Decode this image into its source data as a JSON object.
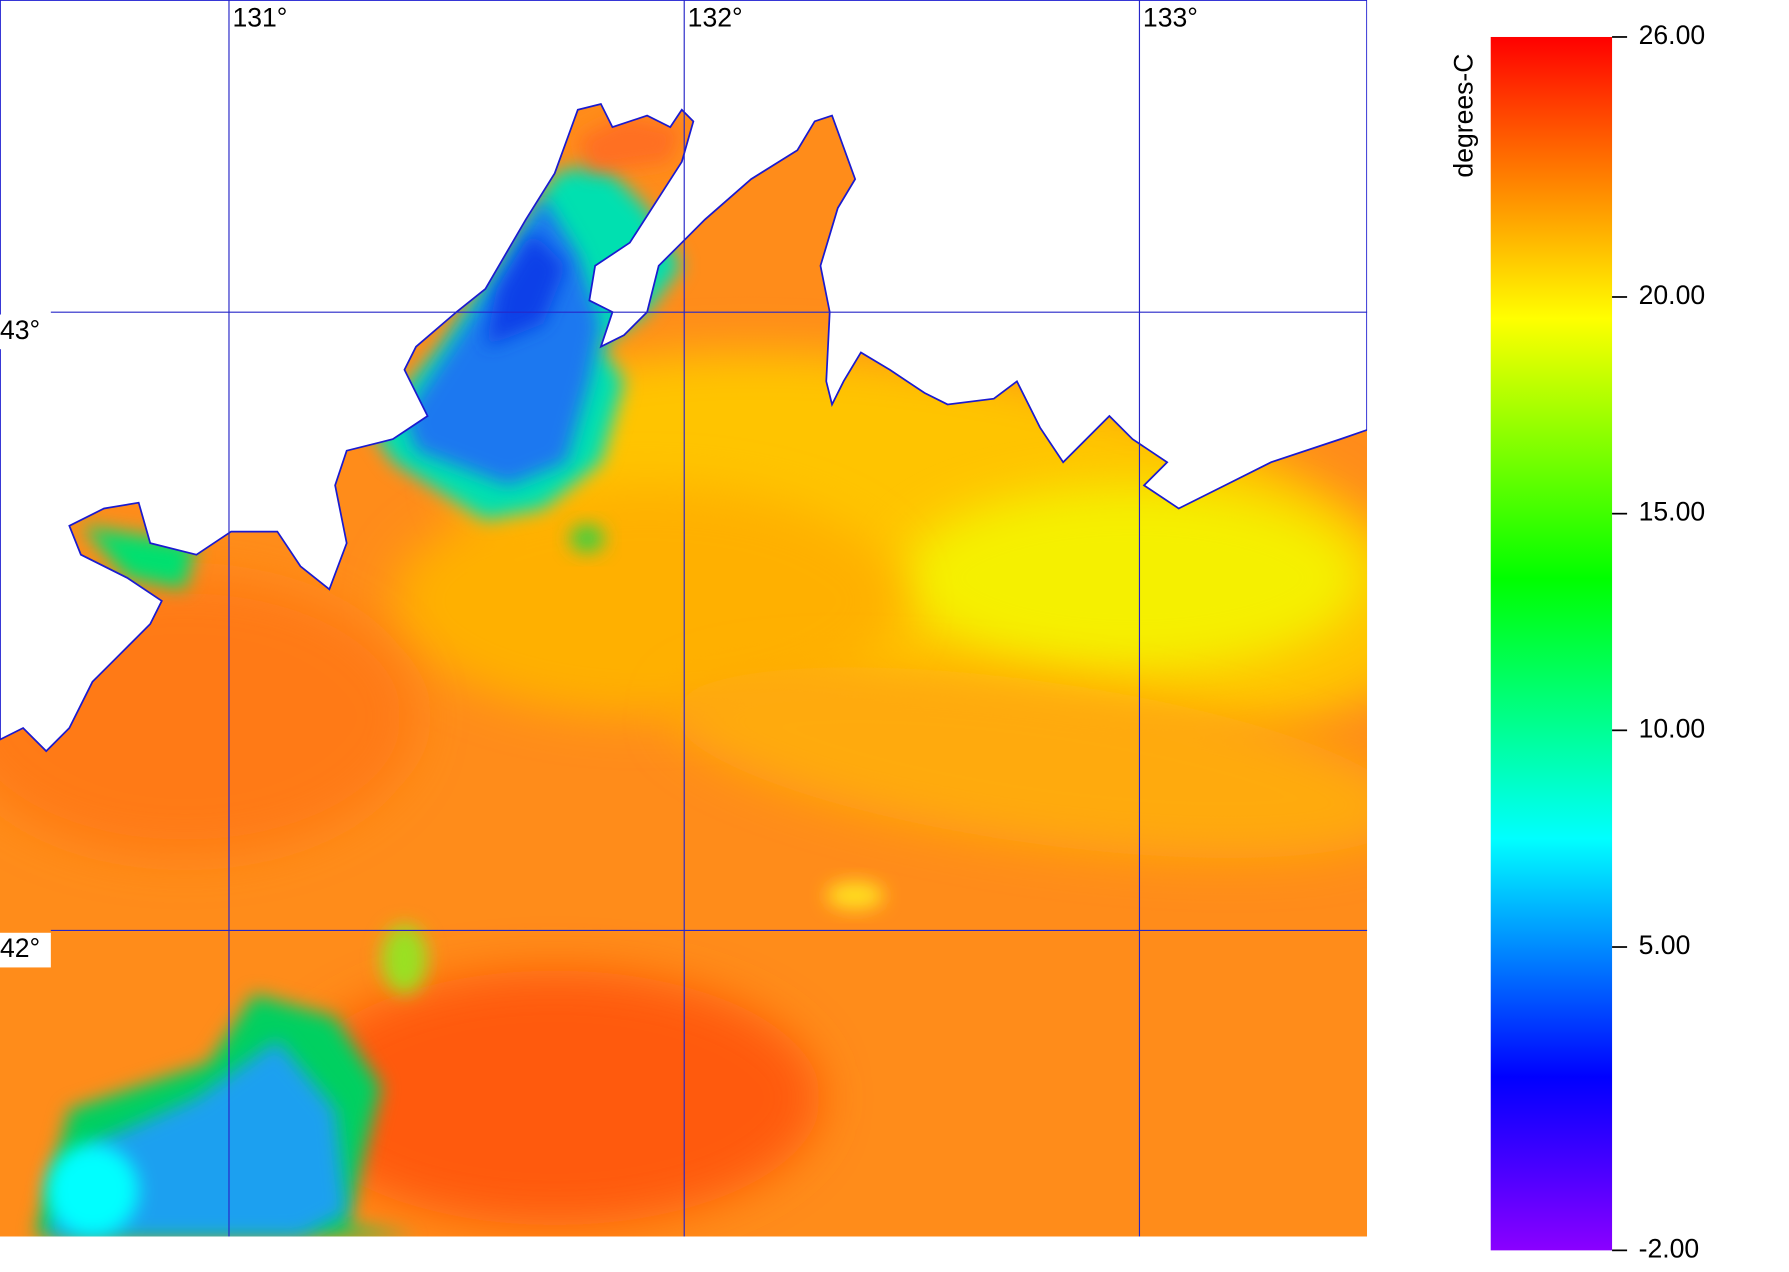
{
  "chart_data": {
    "type": "map",
    "colorbar_label": "degrees-C",
    "xlim": [
      130.497,
      133.5
    ],
    "ylim": [
      41.505,
      43.505
    ],
    "xticks": [
      {
        "value": 131,
        "label": "131°"
      },
      {
        "value": 132,
        "label": "132°"
      },
      {
        "value": 133,
        "label": "133°"
      }
    ],
    "yticks": [
      {
        "value": 43,
        "label": "43°"
      },
      {
        "value": 42,
        "label": "42°"
      }
    ],
    "grid_color": "#2626c8",
    "clim": [
      -2,
      26
    ],
    "cticks": [
      {
        "value": 26,
        "label": "26.00"
      },
      {
        "value": 20,
        "label": "20.00"
      },
      {
        "value": 15,
        "label": "15.00"
      },
      {
        "value": 10,
        "label": "10.00"
      },
      {
        "value": 5,
        "label": "5.00"
      },
      {
        "value": -2,
        "label": "-2.00"
      }
    ],
    "colormap": [
      {
        "value": -2,
        "color": "#8a00ff"
      },
      {
        "value": 2,
        "color": "#0000ff"
      },
      {
        "value": 7.5,
        "color": "#00ffff"
      },
      {
        "value": 13.5,
        "color": "#00ff00"
      },
      {
        "value": 19.5,
        "color": "#ffff00"
      },
      {
        "value": 26,
        "color": "#ff0000"
      }
    ]
  }
}
